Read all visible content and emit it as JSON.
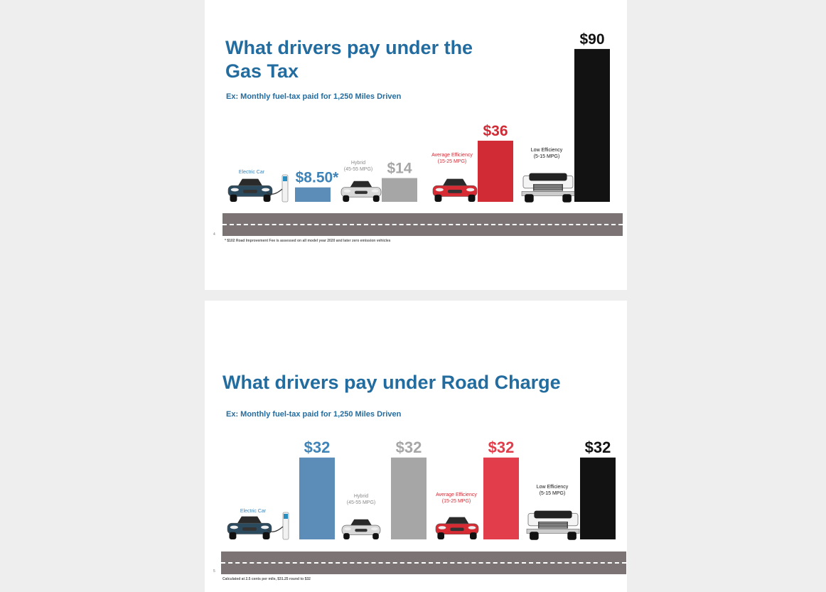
{
  "chart_data": [
    {
      "type": "bar",
      "title": "What drivers pay under the Gas Tax",
      "subtitle": "Ex: Monthly fuel-tax paid for 1,250 Miles Driven",
      "categories": [
        "Electric Car",
        "Hybrid (45-55 MPG)",
        "Average Efficiency (15-25 MPG)",
        "Low Efficiency (5-15 MPG)"
      ],
      "values": [
        8.5,
        14,
        36,
        90
      ],
      "value_labels": [
        "$8.50*",
        "$14",
        "$36",
        "$90"
      ],
      "colors": [
        "#5b8db8",
        "#a6a6a6",
        "#d12b35",
        "#121212"
      ],
      "footnote": "* $102 Road Improvement Fee is assessed on all model year 2020 and later zero emission vehicles",
      "page_number": "4",
      "grid": false,
      "legend": "none"
    },
    {
      "type": "bar",
      "title": "What drivers pay under Road Charge",
      "subtitle": "Ex: Monthly fuel-tax paid for 1,250 Miles Driven",
      "categories": [
        "Electric Car",
        "Hybrid (45-55 MPG)",
        "Average Efficiency (15-25 MPG)",
        "Low Efficiency (5-15 MPG)"
      ],
      "values": [
        32,
        32,
        32,
        32
      ],
      "value_labels": [
        "$32",
        "$32",
        "$32",
        "$32"
      ],
      "colors": [
        "#5b8db8",
        "#a6a6a6",
        "#e23d4a",
        "#121212"
      ],
      "footnote": "Calculated at 2.5 cents per mile, $31.25 round to $32",
      "page_number": "5",
      "grid": false,
      "legend": "none"
    }
  ],
  "car_labels": {
    "electric": "Electric Car",
    "hybrid": [
      "Hybrid",
      "(45-55 MPG)"
    ],
    "average": [
      "Average Efficiency",
      "(15-25 MPG)"
    ],
    "low": [
      "Low Efficiency",
      "(5-15 MPG)"
    ]
  },
  "car_label_colors": {
    "electric": "#3f84b8",
    "hybrid": "#8a8a8a",
    "average": "#d12b35",
    "low": "#111111"
  }
}
